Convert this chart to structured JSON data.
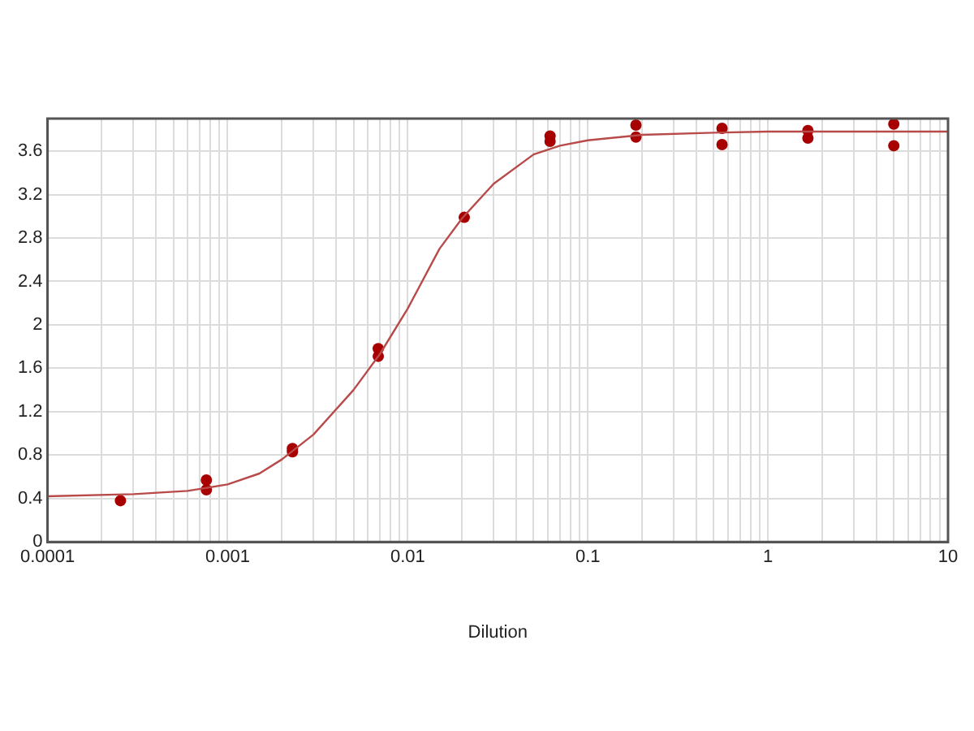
{
  "chart_data": {
    "type": "scatter",
    "xlabel": "Dilution",
    "log": "x",
    "grid": true,
    "legend": false,
    "marker": "circle",
    "xlim": [
      0.0001,
      10
    ],
    "ylim": [
      0,
      3.9
    ],
    "xticks": [
      0.0001,
      {
        "value": 0.0002,
        "label": null
      },
      {
        "value": 0.0003,
        "label": null
      },
      {
        "value": 0.0004,
        "label": null
      },
      {
        "value": 0.0005,
        "label": null
      },
      {
        "value": 0.0006,
        "label": null
      },
      {
        "value": 0.0007,
        "label": null
      },
      {
        "value": 0.0008,
        "label": null
      },
      {
        "value": 0.0009,
        "label": null
      },
      0.001,
      {
        "value": 0.002,
        "label": null
      },
      {
        "value": 0.003,
        "label": null
      },
      {
        "value": 0.004,
        "label": null
      },
      {
        "value": 0.005,
        "label": null
      },
      {
        "value": 0.006,
        "label": null
      },
      {
        "value": 0.007,
        "label": null
      },
      {
        "value": 0.008,
        "label": null
      },
      {
        "value": 0.009,
        "label": null
      },
      0.01,
      {
        "value": 0.02,
        "label": null
      },
      {
        "value": 0.03,
        "label": null
      },
      {
        "value": 0.04,
        "label": null
      },
      {
        "value": 0.05,
        "label": null
      },
      {
        "value": 0.06,
        "label": null
      },
      {
        "value": 0.07,
        "label": null
      },
      {
        "value": 0.08,
        "label": null
      },
      {
        "value": 0.09,
        "label": null
      },
      0.1,
      {
        "value": 0.2,
        "label": null
      },
      {
        "value": 0.3,
        "label": null
      },
      {
        "value": 0.4,
        "label": null
      },
      {
        "value": 0.5,
        "label": null
      },
      {
        "value": 0.6,
        "label": null
      },
      {
        "value": 0.7,
        "label": null
      },
      {
        "value": 0.8,
        "label": null
      },
      {
        "value": 0.9,
        "label": null
      },
      1,
      {
        "value": 2,
        "label": null
      },
      {
        "value": 3,
        "label": null
      },
      {
        "value": 4,
        "label": null
      },
      {
        "value": 5,
        "label": null
      },
      {
        "value": 6,
        "label": null
      },
      {
        "value": 7,
        "label": null
      },
      {
        "value": 8,
        "label": null
      },
      {
        "value": 9,
        "label": null
      },
      10
    ],
    "yticks": [
      0,
      0.4,
      0.8,
      1.2,
      1.6,
      2,
      2.4,
      2.8,
      3.2,
      3.6
    ],
    "series": [
      {
        "type": "line",
        "marker": "none",
        "color": "#b84a4a",
        "x": [
          0.0001,
          0.0003,
          0.0006,
          0.001,
          0.0015,
          0.002,
          0.003,
          0.005,
          0.007,
          0.01,
          0.015,
          0.02,
          0.03,
          0.05,
          0.07,
          0.1,
          0.2,
          0.5,
          1,
          10
        ],
        "values": [
          0.42,
          0.44,
          0.47,
          0.53,
          0.63,
          0.76,
          0.99,
          1.4,
          1.73,
          2.15,
          2.7,
          2.98,
          3.3,
          3.57,
          3.65,
          3.7,
          3.75,
          3.77,
          3.78,
          3.78
        ]
      },
      {
        "color": "#a80000",
        "x": [
          0.000254,
          0.000762,
          0.000762,
          0.00229,
          0.00229,
          0.00686,
          0.00686,
          0.0206,
          0.0617,
          0.0617,
          0.185,
          0.185,
          0.556,
          0.556,
          1.667,
          1.667,
          5,
          5
        ],
        "values": [
          0.38,
          0.57,
          0.48,
          0.86,
          0.83,
          1.78,
          1.71,
          2.99,
          3.74,
          3.69,
          3.84,
          3.73,
          3.81,
          3.66,
          3.79,
          3.72,
          3.85,
          3.65
        ]
      }
    ]
  }
}
